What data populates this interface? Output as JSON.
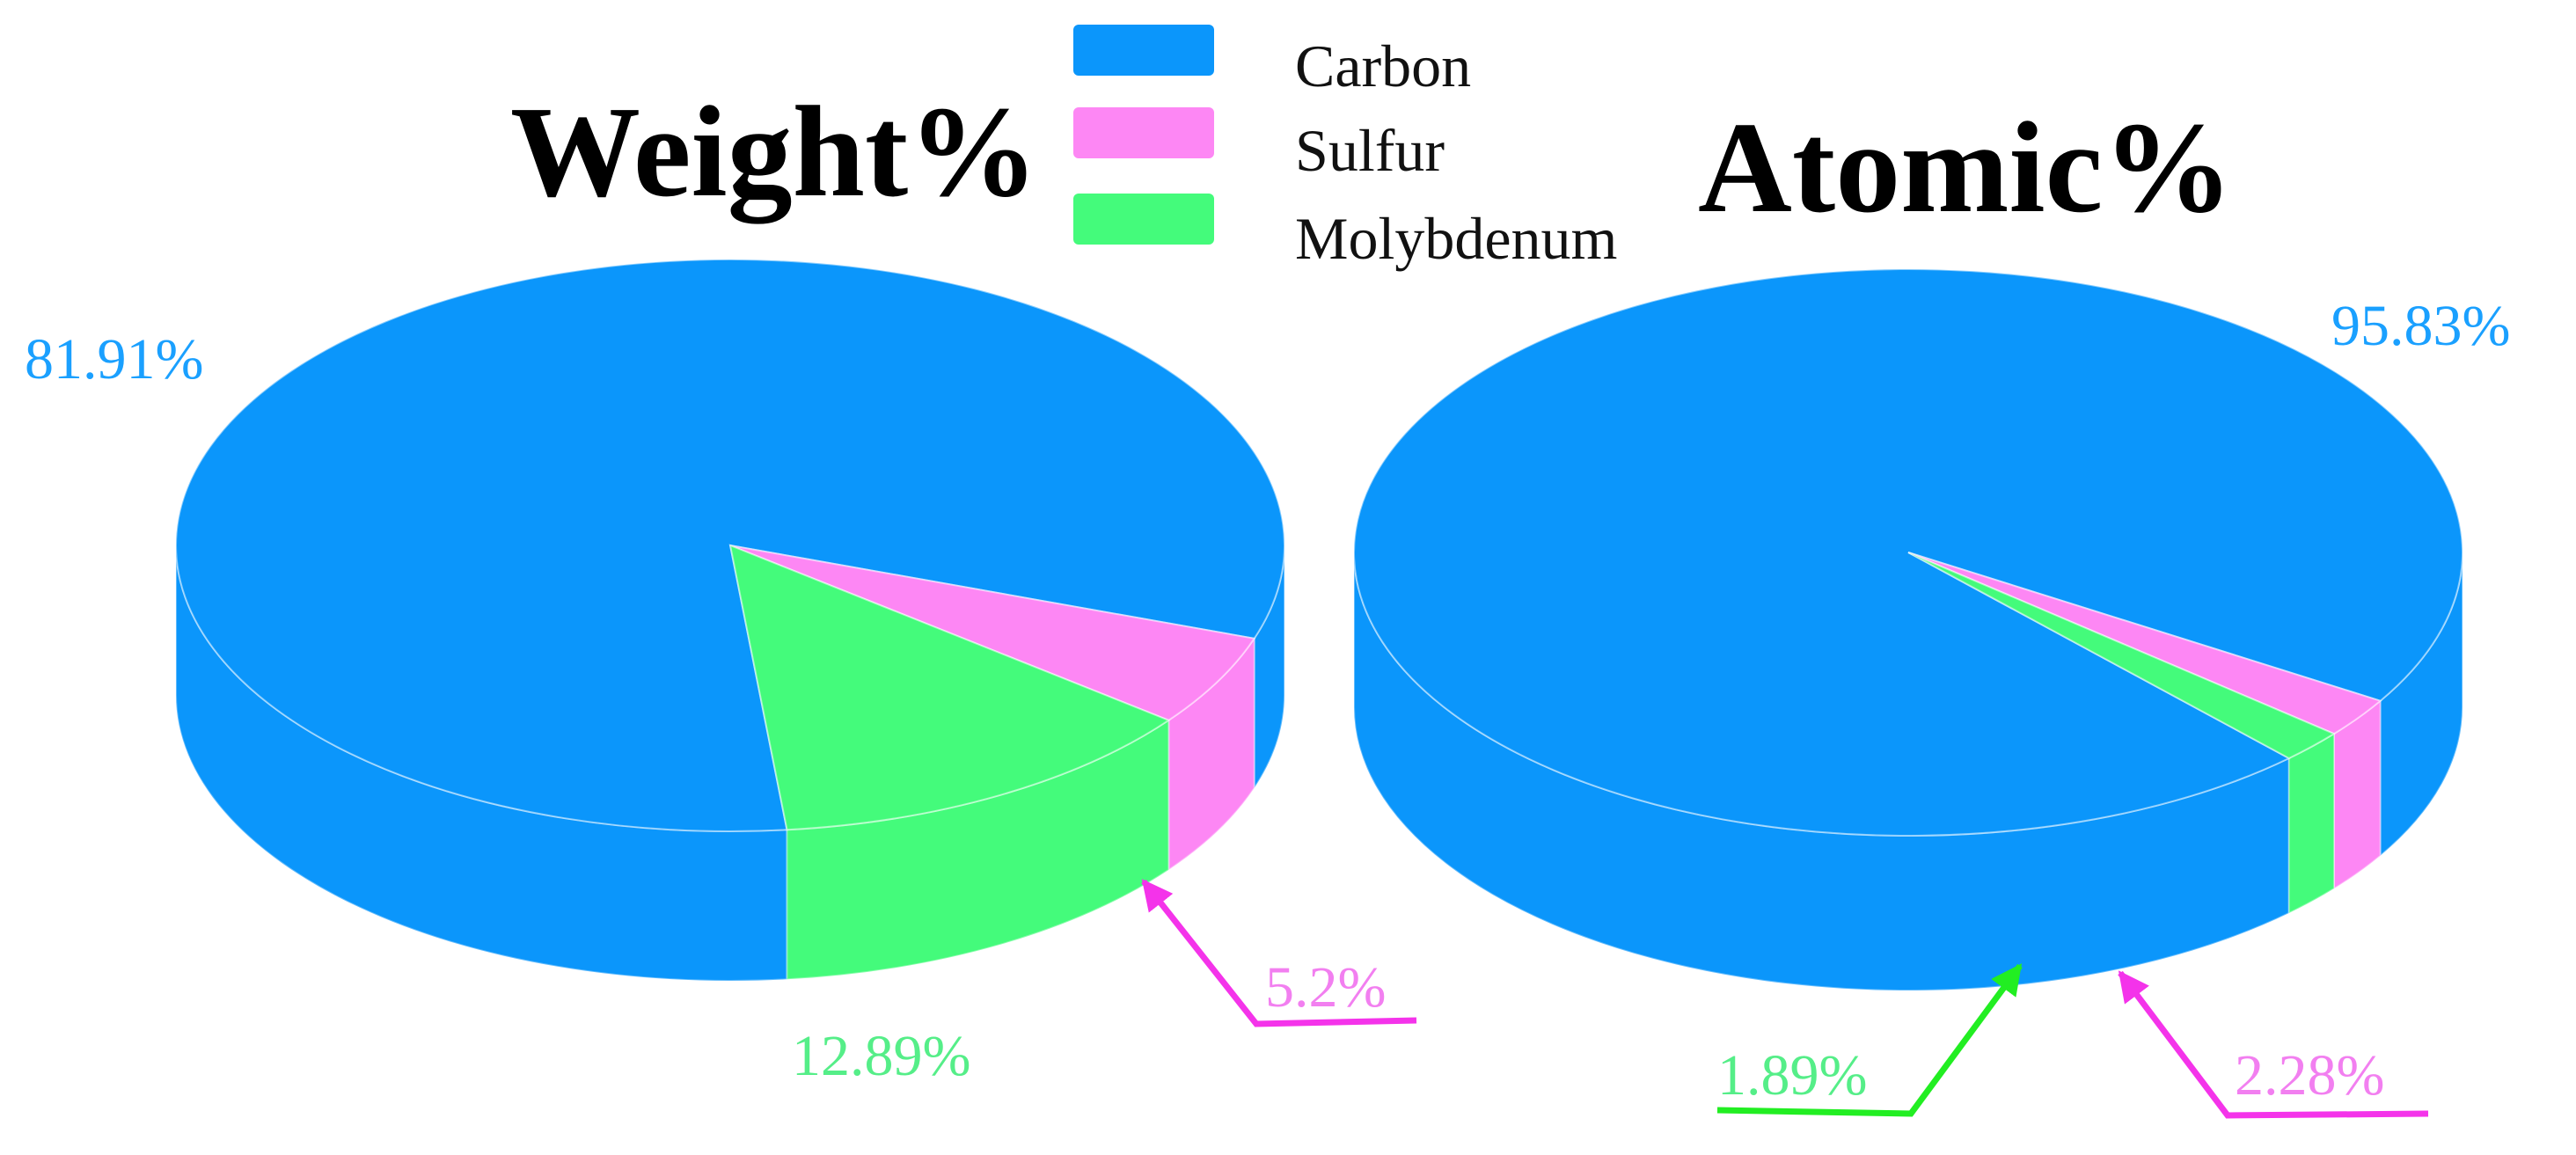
{
  "colors": {
    "carbon": "#0b96fb",
    "sulfur": "#fd87f4",
    "molybdenum": "#44fb7b",
    "carbon_label": "#1aa0ff",
    "sulfur_label": "#f27ff0",
    "molybdenum_label": "#55ee88",
    "sulfur_arrow": "#f433ea",
    "molybdenum_arrow": "#22ee22"
  },
  "chart_data": [
    {
      "type": "pie",
      "style": "3d",
      "title": "Weight%",
      "categories": [
        "Carbon",
        "Sulfur",
        "Molybdenum"
      ],
      "values": [
        81.91,
        5.2,
        12.89
      ],
      "labels": [
        "81.91%",
        "5.2%",
        "12.89%"
      ],
      "legend": "top-center"
    },
    {
      "type": "pie",
      "style": "3d",
      "title": "Atomic%",
      "categories": [
        "Carbon",
        "Sulfur",
        "Molybdenum"
      ],
      "values": [
        95.83,
        2.28,
        1.89
      ],
      "labels": [
        "95.83%",
        "2.28%",
        "1.89%"
      ],
      "legend": "top-center"
    }
  ],
  "legend": {
    "items": [
      {
        "label": "Carbon",
        "color": "#0b96fb"
      },
      {
        "label": "Sulfur",
        "color": "#fd87f4"
      },
      {
        "label": "Molybdenum",
        "color": "#44fb7b"
      }
    ]
  }
}
